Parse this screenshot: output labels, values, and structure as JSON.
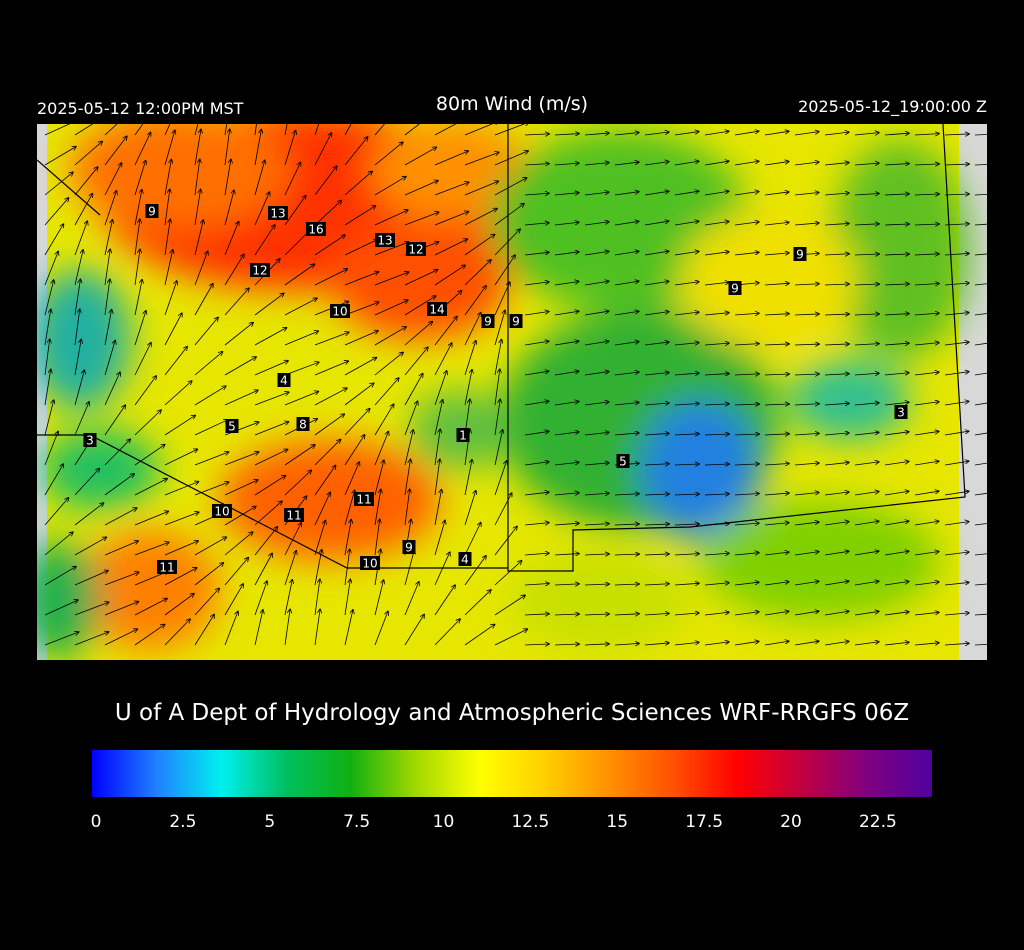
{
  "header": {
    "left": "2025-05-12 12:00PM MST",
    "title": "80m Wind (m/s)",
    "right": "2025-05-12_19:00:00 Z"
  },
  "stations": [
    9,
    13,
    16,
    13,
    12,
    12,
    10,
    14,
    9,
    9,
    9,
    9,
    4,
    5,
    8,
    1,
    3,
    3,
    5,
    10,
    11,
    11,
    10,
    9,
    4,
    11
  ],
  "credit": "U of A Dept of Hydrology and Atmospheric Sciences WRF-RRGFS 06Z",
  "colorbar": {
    "lim": [
      0,
      24
    ],
    "ticks": [
      0,
      2.5,
      5,
      7.5,
      10,
      12.5,
      15,
      17.5,
      20,
      22.5
    ],
    "colors": [
      "#0000ff",
      "#2080ff",
      "#00f0f0",
      "#00c060",
      "#10b010",
      "#a0d800",
      "#ffff00",
      "#ffd000",
      "#ff9000",
      "#ff5000",
      "#ff0000",
      "#c00040",
      "#800080",
      "#5000a0"
    ]
  }
}
